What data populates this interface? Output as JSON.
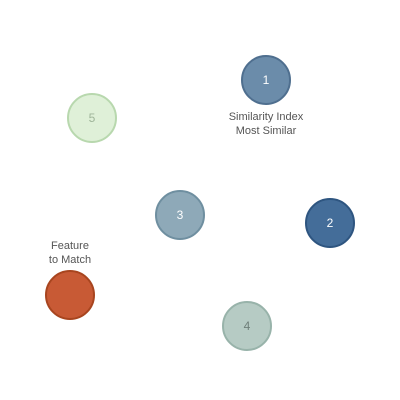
{
  "diagram": {
    "nodes": [
      {
        "id": "1",
        "label": "1",
        "fill": "#6b8caa",
        "stroke": "#4f6f8f",
        "text_color": "#ffffff"
      },
      {
        "id": "2",
        "label": "2",
        "fill": "#446d99",
        "stroke": "#2e5580",
        "text_color": "#ffffff"
      },
      {
        "id": "3",
        "label": "3",
        "fill": "#8ea9b8",
        "stroke": "#6f8fa0",
        "text_color": "#ffffff"
      },
      {
        "id": "4",
        "label": "4",
        "fill": "#b6cbc4",
        "stroke": "#98b3aa",
        "text_color": "#6f7f7a"
      },
      {
        "id": "5",
        "label": "5",
        "fill": "#dff0d8",
        "stroke": "#b8d8ae",
        "text_color": "#9fb59a"
      },
      {
        "id": "target",
        "label": "",
        "fill": "#c85a35",
        "stroke": "#a8451f",
        "text_color": "#ffffff"
      }
    ],
    "annotations": {
      "similarity": {
        "line1": "Similarity Index",
        "line2": "Most Similar"
      },
      "feature": {
        "line1": "Feature",
        "line2": "to Match"
      }
    }
  }
}
